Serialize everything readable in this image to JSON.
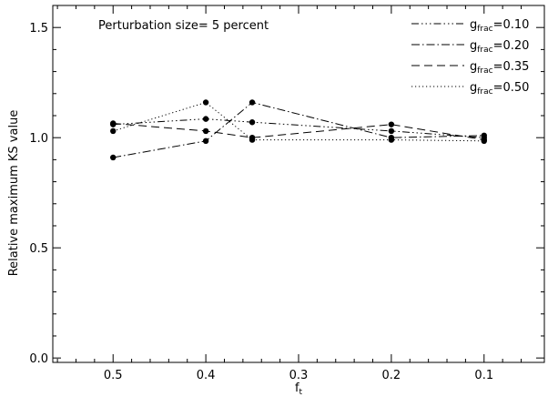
{
  "chart_data": {
    "type": "line",
    "annotation": "Perturbation size= 5 percent",
    "xlabel": "f",
    "xlabel_sub": "t",
    "ylabel": "Relative maximum KS value",
    "x": [
      0.5,
      0.4,
      0.35,
      0.2,
      0.1
    ],
    "xlim": [
      0.565,
      0.035
    ],
    "ylim": [
      -0.02,
      1.6
    ],
    "x_ticks": [
      0.5,
      0.4,
      0.3,
      0.2,
      0.1
    ],
    "x_tick_labels": [
      "0.5",
      "0.4",
      "0.3",
      "0.2",
      "0.1"
    ],
    "y_ticks": [
      0.0,
      0.5,
      1.0,
      1.5
    ],
    "y_tick_labels": [
      "0.0",
      "0.5",
      "1.0",
      "1.5"
    ],
    "grid": false,
    "legend_position": "top-right",
    "marker": "filled-circle",
    "series": [
      {
        "name_base": "g",
        "name_sub": "frac",
        "name_value": "=0.10",
        "dash": "dash-dot-dot-dot",
        "values": [
          1.06,
          1.085,
          1.07,
          1.03,
          1.0
        ]
      },
      {
        "name_base": "g",
        "name_sub": "frac",
        "name_value": "=0.20",
        "dash": "dash-dot",
        "values": [
          0.91,
          0.985,
          1.16,
          1.0,
          1.01
        ]
      },
      {
        "name_base": "g",
        "name_sub": "frac",
        "name_value": "=0.35",
        "dash": "dashed",
        "values": [
          1.065,
          1.03,
          1.0,
          1.06,
          0.99
        ]
      },
      {
        "name_base": "g",
        "name_sub": "frac",
        "name_value": "=0.50",
        "dash": "dotted",
        "values": [
          1.03,
          1.16,
          0.99,
          0.99,
          0.985
        ]
      }
    ]
  }
}
